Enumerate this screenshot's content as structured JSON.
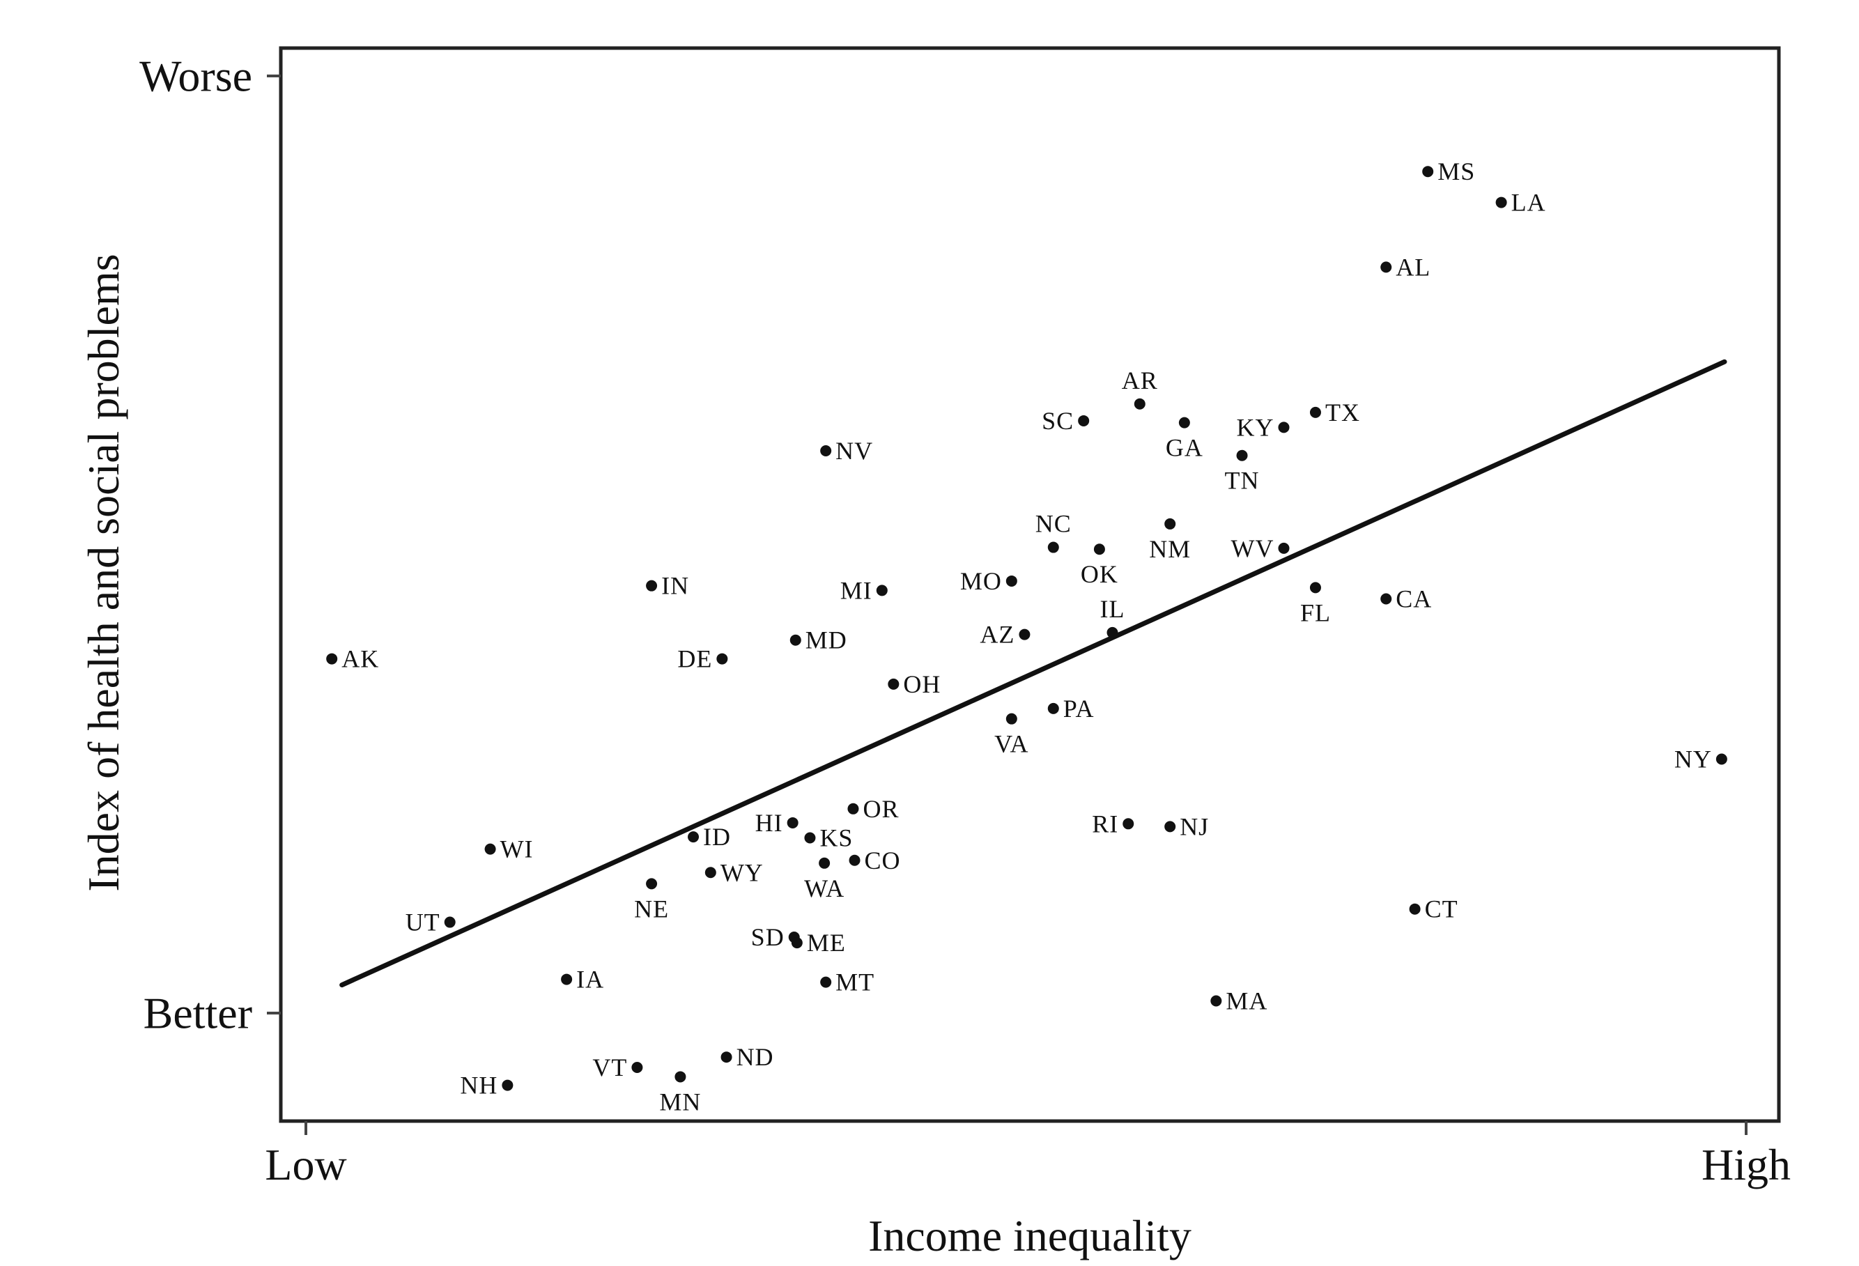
{
  "chart_data": {
    "type": "scatter",
    "xlabel": "Income inequality",
    "ylabel": "Index of health and social problems",
    "x_ticks": [
      {
        "value": 0,
        "label": "Low"
      },
      {
        "value": 1,
        "label": "High"
      }
    ],
    "y_ticks": [
      {
        "value": 0,
        "label": "Better"
      },
      {
        "value": 1,
        "label": "Worse"
      }
    ],
    "xlim": [
      -0.02,
      1.02
    ],
    "ylim": [
      -0.115,
      1.03
    ],
    "grid": false,
    "legend": "none",
    "colors": {
      "points": "#111111",
      "trend_line": "#111111",
      "frame": "#222222"
    },
    "trend_line": {
      "x": [
        0.025,
        0.985
      ],
      "y": [
        0.03,
        0.695
      ]
    },
    "points": [
      {
        "label": "AK",
        "x": 0.018,
        "y": 0.378,
        "pos": "right"
      },
      {
        "label": "WI",
        "x": 0.128,
        "y": 0.175,
        "pos": "right"
      },
      {
        "label": "UT",
        "x": 0.1,
        "y": 0.097,
        "pos": "left"
      },
      {
        "label": "IA",
        "x": 0.181,
        "y": 0.036,
        "pos": "right"
      },
      {
        "label": "NH",
        "x": 0.14,
        "y": -0.077,
        "pos": "left"
      },
      {
        "label": "VT",
        "x": 0.23,
        "y": -0.058,
        "pos": "left"
      },
      {
        "label": "MN",
        "x": 0.26,
        "y": -0.068,
        "pos": "below"
      },
      {
        "label": "ND",
        "x": 0.292,
        "y": -0.047,
        "pos": "right"
      },
      {
        "label": "IN",
        "x": 0.24,
        "y": 0.456,
        "pos": "right"
      },
      {
        "label": "DE",
        "x": 0.289,
        "y": 0.378,
        "pos": "left"
      },
      {
        "label": "MD",
        "x": 0.34,
        "y": 0.398,
        "pos": "right"
      },
      {
        "label": "NV",
        "x": 0.361,
        "y": 0.6,
        "pos": "right"
      },
      {
        "label": "MI",
        "x": 0.4,
        "y": 0.451,
        "pos": "left"
      },
      {
        "label": "OH",
        "x": 0.408,
        "y": 0.351,
        "pos": "right"
      },
      {
        "label": "ID",
        "x": 0.269,
        "y": 0.188,
        "pos": "right"
      },
      {
        "label": "WY",
        "x": 0.281,
        "y": 0.15,
        "pos": "right"
      },
      {
        "label": "NE",
        "x": 0.24,
        "y": 0.138,
        "pos": "below"
      },
      {
        "label": "HI",
        "x": 0.338,
        "y": 0.203,
        "pos": "left"
      },
      {
        "label": "KS",
        "x": 0.35,
        "y": 0.187,
        "pos": "right"
      },
      {
        "label": "OR",
        "x": 0.38,
        "y": 0.218,
        "pos": "right"
      },
      {
        "label": "CO",
        "x": 0.381,
        "y": 0.163,
        "pos": "right"
      },
      {
        "label": "WA",
        "x": 0.36,
        "y": 0.16,
        "pos": "below"
      },
      {
        "label": "SD",
        "x": 0.339,
        "y": 0.081,
        "pos": "left"
      },
      {
        "label": "ME",
        "x": 0.341,
        "y": 0.075,
        "pos": "right"
      },
      {
        "label": "MT",
        "x": 0.361,
        "y": 0.033,
        "pos": "right"
      },
      {
        "label": "MO",
        "x": 0.49,
        "y": 0.461,
        "pos": "left"
      },
      {
        "label": "AZ",
        "x": 0.499,
        "y": 0.404,
        "pos": "left"
      },
      {
        "label": "VA",
        "x": 0.49,
        "y": 0.314,
        "pos": "below"
      },
      {
        "label": "PA",
        "x": 0.519,
        "y": 0.325,
        "pos": "right"
      },
      {
        "label": "NC",
        "x": 0.519,
        "y": 0.497,
        "pos": "above"
      },
      {
        "label": "OK",
        "x": 0.551,
        "y": 0.495,
        "pos": "below"
      },
      {
        "label": "IL",
        "x": 0.56,
        "y": 0.406,
        "pos": "above"
      },
      {
        "label": "SC",
        "x": 0.54,
        "y": 0.632,
        "pos": "left"
      },
      {
        "label": "AR",
        "x": 0.579,
        "y": 0.65,
        "pos": "above"
      },
      {
        "label": "GA",
        "x": 0.61,
        "y": 0.63,
        "pos": "below"
      },
      {
        "label": "NM",
        "x": 0.6,
        "y": 0.522,
        "pos": "below"
      },
      {
        "label": "TN",
        "x": 0.65,
        "y": 0.595,
        "pos": "below"
      },
      {
        "label": "KY",
        "x": 0.679,
        "y": 0.625,
        "pos": "left"
      },
      {
        "label": "TX",
        "x": 0.701,
        "y": 0.641,
        "pos": "right"
      },
      {
        "label": "WV",
        "x": 0.679,
        "y": 0.496,
        "pos": "left"
      },
      {
        "label": "FL",
        "x": 0.701,
        "y": 0.454,
        "pos": "below"
      },
      {
        "label": "CA",
        "x": 0.75,
        "y": 0.442,
        "pos": "right"
      },
      {
        "label": "RI",
        "x": 0.571,
        "y": 0.202,
        "pos": "left"
      },
      {
        "label": "NJ",
        "x": 0.6,
        "y": 0.199,
        "pos": "right"
      },
      {
        "label": "MA",
        "x": 0.632,
        "y": 0.013,
        "pos": "right"
      },
      {
        "label": "CT",
        "x": 0.77,
        "y": 0.111,
        "pos": "right"
      },
      {
        "label": "NY",
        "x": 0.983,
        "y": 0.271,
        "pos": "left"
      },
      {
        "label": "AL",
        "x": 0.75,
        "y": 0.796,
        "pos": "right"
      },
      {
        "label": "MS",
        "x": 0.779,
        "y": 0.898,
        "pos": "right"
      },
      {
        "label": "LA",
        "x": 0.83,
        "y": 0.865,
        "pos": "right"
      }
    ]
  }
}
